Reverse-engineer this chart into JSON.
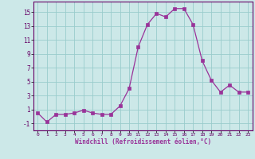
{
  "hours": [
    0,
    1,
    2,
    3,
    4,
    5,
    6,
    7,
    8,
    9,
    10,
    11,
    12,
    13,
    14,
    15,
    16,
    17,
    18,
    19,
    20,
    21,
    22,
    23
  ],
  "windchill": [
    0.5,
    -0.8,
    0.3,
    0.3,
    0.5,
    0.9,
    0.5,
    0.3,
    0.3,
    1.5,
    4.0,
    10.0,
    13.2,
    14.8,
    14.3,
    15.5,
    15.5,
    13.2,
    8.0,
    5.2,
    3.5,
    4.5,
    3.5,
    3.5
  ],
  "line_color": "#993399",
  "marker": "s",
  "marker_size": 2.5,
  "bg_color": "#cce8e8",
  "grid_color": "#99cccc",
  "xlabel": "Windchill (Refroidissement éolien,°C)",
  "yticks": [
    -1,
    1,
    3,
    5,
    7,
    9,
    11,
    13,
    15
  ],
  "xlim": [
    -0.5,
    23.5
  ],
  "ylim": [
    -2.0,
    16.5
  ]
}
